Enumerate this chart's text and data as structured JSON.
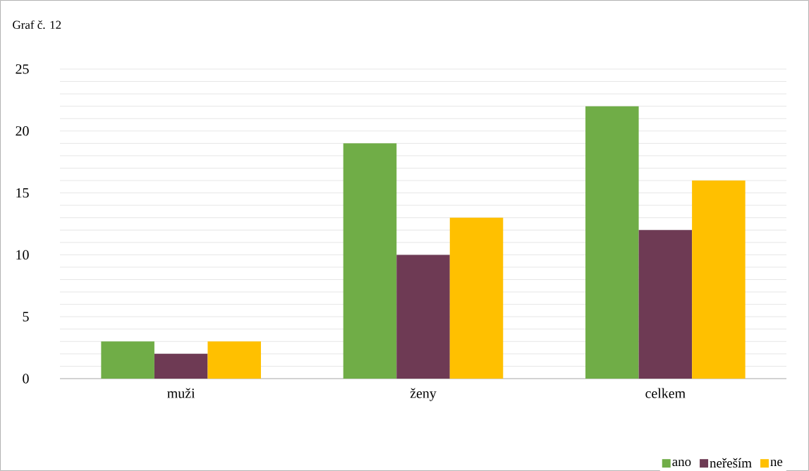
{
  "chart_data": {
    "type": "bar",
    "title": "Graf č. 12",
    "categories": [
      "muži",
      "ženy",
      "celkem"
    ],
    "series": [
      {
        "name": "ano",
        "color": "#70ad47",
        "values": [
          3,
          19,
          22
        ]
      },
      {
        "name": "neřeším",
        "color": "#6e3a54",
        "values": [
          2,
          10,
          12
        ]
      },
      {
        "name": "ne",
        "color": "#ffc000",
        "values": [
          3,
          13,
          16
        ]
      }
    ],
    "ylim": [
      0,
      25
    ],
    "yticks": [
      0,
      {
        "value": 1,
        "label": null
      },
      {
        "value": 2,
        "label": null
      },
      {
        "value": 3,
        "label": null
      },
      {
        "value": 4,
        "label": null
      },
      5,
      {
        "value": 6,
        "label": null
      },
      {
        "value": 7,
        "label": null
      },
      {
        "value": 8,
        "label": null
      },
      {
        "value": 9,
        "label": null
      },
      10,
      {
        "value": 11,
        "label": null
      },
      {
        "value": 12,
        "label": null
      },
      {
        "value": 13,
        "label": null
      },
      {
        "value": 14,
        "label": null
      },
      15,
      {
        "value": 16,
        "label": null
      },
      {
        "value": 17,
        "label": null
      },
      {
        "value": 18,
        "label": null
      },
      {
        "value": 19,
        "label": null
      },
      20,
      {
        "value": 21,
        "label": null
      },
      {
        "value": 22,
        "label": null
      },
      {
        "value": 23,
        "label": null
      },
      {
        "value": 24,
        "label": null
      },
      25
    ],
    "grid": "y",
    "legend": "bottom right"
  }
}
